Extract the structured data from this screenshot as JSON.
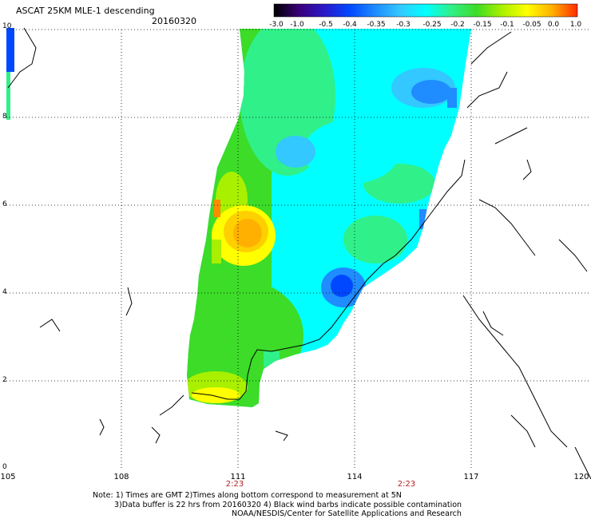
{
  "header": {
    "title": "ASCAT 25KM MLE-1 descending",
    "date": "20160320"
  },
  "colorbar": {
    "labels": [
      "-3.0",
      "-1.0",
      "-0.5",
      "-0.4",
      "-0.35",
      "-0.3",
      "-0.25",
      "-0.2",
      "-0.15",
      "-0.1",
      "-0.05",
      "0.0",
      "1.0"
    ],
    "colors": [
      "#000000",
      "#3a007a",
      "#2b19c9",
      "#0048ff",
      "#1f8cff",
      "#33c8ff",
      "#00ffff",
      "#30f08a",
      "#3cdc28",
      "#a8f000",
      "#ffff00",
      "#ffb000",
      "#ff2a00"
    ]
  },
  "axes": {
    "x_ticks": [
      "105",
      "108",
      "111",
      "114",
      "117",
      "120"
    ],
    "y_ticks": [
      "0",
      "2",
      "4",
      "6",
      "8",
      "10"
    ],
    "times": [
      "2:23",
      "2:23"
    ],
    "grid": true
  },
  "notes": {
    "line1": "Note: 1) Times are GMT 2)Times along bottom correspond to measurement at 5N",
    "line2": "3)Data buffer is 22 hrs from 20160320 4) Black wind barbs indicate possible contamination",
    "line3": "NOAA/NESDIS/Center for Satellite Applications and Research"
  }
}
